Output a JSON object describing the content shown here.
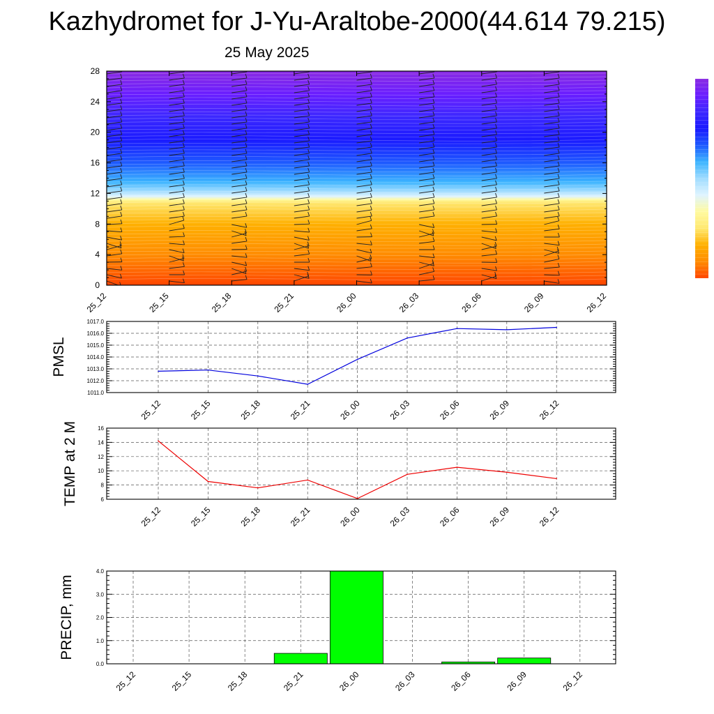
{
  "title": "Kazhydromet for J-Yu-Araltobe-2000(44.614 79.215)",
  "subtitle": "25 May 2025",
  "colors": {
    "pmsl_line": "#0000dd",
    "temp_line": "#ee0000",
    "precip_bar": "#00ff00",
    "axis": "#000000"
  },
  "chart_data": [
    {
      "id": "heights",
      "type": "heatmap",
      "title": "",
      "xlabel": "",
      "ylabel": "",
      "x_labels": [
        "25_12",
        "25_15",
        "25_18",
        "25_21",
        "26_00",
        "26_03",
        "26_06",
        "26_09",
        "26_12"
      ],
      "y_ticks": [
        0,
        4,
        8,
        12,
        16,
        20,
        24,
        28
      ],
      "ylim": [
        0,
        28
      ],
      "colormap": [
        "#ff4500",
        "#ff8c00",
        "#ffb000",
        "#ffe870",
        "#fffaa0",
        "#dff4ff",
        "#a0dcff",
        "#3cb4ff",
        "#1e5aff",
        "#1a1aff",
        "#3c28ff",
        "#6a1eff",
        "#8a2be2"
      ],
      "colormap_stops_height": [
        0,
        4,
        8,
        10.8,
        11.2,
        11.6,
        12.3,
        13.5,
        16,
        19,
        22,
        25,
        28
      ],
      "wind_barbs": true
    },
    {
      "id": "pmsl",
      "type": "line",
      "ylabel": "PMSL",
      "x_labels": [
        "25_12",
        "25_15",
        "25_18",
        "25_21",
        "26_00",
        "26_03",
        "26_06",
        "26_09",
        "26_12"
      ],
      "y_ticks": [
        "1011.0",
        "1012.0",
        "1013.0",
        "1014.0",
        "1015.0",
        "1016.0",
        "1017.0"
      ],
      "ylim": [
        1011,
        1017
      ],
      "values": [
        1012.8,
        1012.9,
        1012.4,
        1011.7,
        1013.8,
        1015.6,
        1016.4,
        1016.3,
        1016.5
      ],
      "grid": true
    },
    {
      "id": "temp",
      "type": "line",
      "ylabel": "TEMP at 2 M",
      "x_labels": [
        "25_12",
        "25_15",
        "25_18",
        "25_21",
        "26_00",
        "26_03",
        "26_06",
        "26_09",
        "26_12"
      ],
      "y_ticks": [
        "6",
        "8",
        "10",
        "12",
        "14",
        "16"
      ],
      "ylim": [
        6,
        16
      ],
      "values": [
        14.2,
        8.5,
        7.6,
        8.7,
        6.1,
        9.5,
        10.5,
        9.8,
        8.9
      ],
      "grid": true
    },
    {
      "id": "precip",
      "type": "bar",
      "ylabel": "PRECIP, mm",
      "x_labels": [
        "25_12",
        "25_15",
        "25_18",
        "25_21",
        "26_00",
        "26_03",
        "26_06",
        "26_09",
        "26_12"
      ],
      "y_ticks": [
        "0.0",
        "1.0",
        "2.0",
        "3.0",
        "4.0"
      ],
      "ylim": [
        0,
        4
      ],
      "values": [
        0,
        0,
        0,
        0.45,
        4.0,
        0,
        0.08,
        0.25,
        0
      ],
      "grid": true
    }
  ]
}
